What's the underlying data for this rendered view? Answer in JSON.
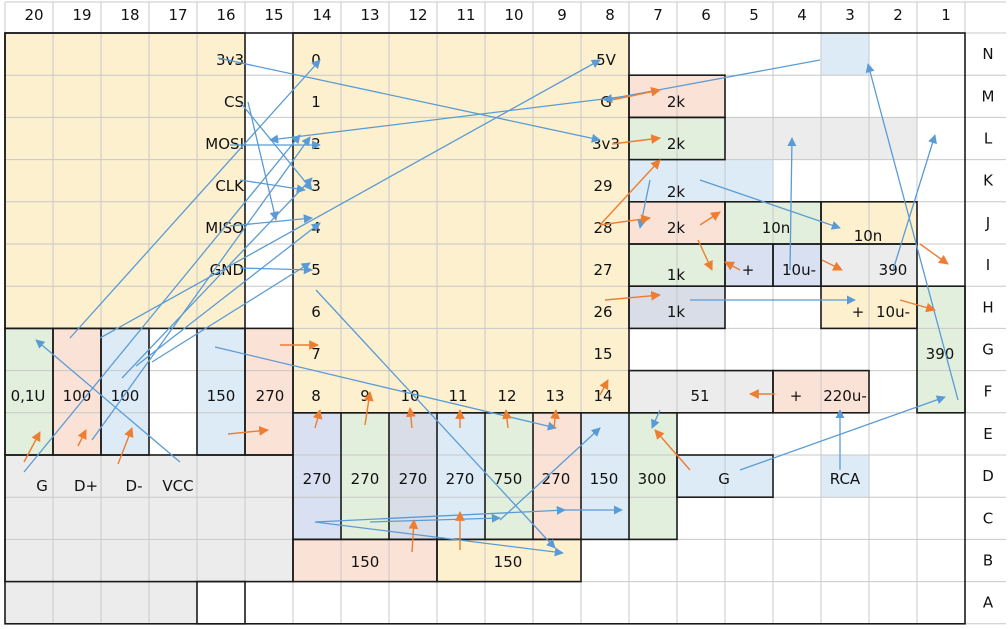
{
  "column_labels": [
    "20",
    "19",
    "18",
    "17",
    "16",
    "15",
    "14",
    "13",
    "12",
    "11",
    "10",
    "9",
    "8",
    "7",
    "6",
    "5",
    "4",
    "3",
    "2",
    "1"
  ],
  "row_labels": [
    "N",
    "M",
    "L",
    "K",
    "J",
    "I",
    "H",
    "G",
    "F",
    "E",
    "D",
    "C",
    "B",
    "A"
  ],
  "colors": {
    "yellow": "#fdf0cf",
    "red": "#fbe2d6",
    "green": "#e1efdc",
    "blue": "#ddebf7",
    "gray": "#ececec",
    "slate": "#d8dde8",
    "violet": "#d9e0f2",
    "blue_arrow": "#5b9bd5",
    "orange_arrow": "#ed7d31"
  },
  "labels": {
    "pin_3v3": "3v3",
    "pin_cs": "CS",
    "pin_mosi": "MOSI",
    "pin_clk": "CLK",
    "pin_miso": "MISO",
    "pin_gnd": "GND",
    "n0": "0",
    "n1": "1",
    "n2": "2",
    "n3": "3",
    "n4": "4",
    "n5": "5",
    "n6": "6",
    "n7": "7",
    "n8": "8",
    "n9": "9",
    "n10": "10",
    "n11": "11",
    "n12": "12",
    "n13": "13",
    "n14": "14",
    "p5v": "5V",
    "pG": "G",
    "p3v3": "3v3",
    "p29": "29",
    "p28": "28",
    "p27": "27",
    "p26": "26",
    "p15": "15",
    "p14": "14",
    "r2k_m": "2k",
    "r2k_l": "2k",
    "r2k_k": "2k",
    "r2k_j": "2k",
    "r1k_i": "1k",
    "r1k_h": "1k",
    "c10n_a": "10n",
    "c10n_b": "10n",
    "r390_i": "390",
    "r390_g": "390",
    "c10u_i": "10u-",
    "c10u_h": "10u-",
    "plus_i": "+",
    "plus_h": "+",
    "plus_f": "+",
    "c220u": "220u-",
    "r51": "51",
    "r270_f": "270",
    "r150_f": "150",
    "r100_a": "100",
    "r100_b": "100",
    "c01u": "0,1U",
    "usb_g": "G",
    "usb_dp": "D+",
    "usb_dm": "D-",
    "usb_vcc": "VCC",
    "r270_d1": "270",
    "r270_d2": "270",
    "r270_d3": "270",
    "r750": "750",
    "r270_d4": "270",
    "r150_d": "150",
    "r300": "300",
    "g_d": "G",
    "rca": "RCA",
    "r150_b1": "150",
    "r150_b2": "150"
  },
  "blue_connections": [
    [
      "pin_3v3",
      "l_3v3"
    ],
    [
      "pin_cs",
      "d_n3"
    ],
    [
      "pin_mosi",
      "d_n1"
    ],
    [
      "pin_clk",
      "d_n3"
    ],
    [
      "pin_miso",
      "d_n4"
    ],
    [
      "pin_gnd",
      "d_n5"
    ],
    [
      "m_G",
      "p_n3"
    ],
    [
      "k_2k",
      "j_10n"
    ],
    [
      "h_1k",
      "h_plus"
    ],
    [
      "l_3v3",
      "i_390"
    ],
    [
      "d_g",
      "f_right"
    ],
    [
      "i_10u",
      "l_4"
    ],
    [
      "h_10u",
      "l_2"
    ],
    [
      "g_390",
      "n_3"
    ],
    [
      "c_270",
      "b_150"
    ],
    [
      "c_270",
      "c_150"
    ],
    [
      "c_12",
      "f_8"
    ],
    [
      "e_g",
      "l_side"
    ]
  ],
  "orange_connections": [
    [
      "m_2k",
      "l_arrow"
    ],
    [
      "l_2k",
      "m_arrow"
    ],
    [
      "j_2k",
      "l_28"
    ],
    [
      "i_1k",
      "j_28"
    ],
    [
      "h_26",
      "h_1k"
    ],
    [
      "f_51",
      "f_plus"
    ],
    [
      "e_300",
      "d_arrow"
    ],
    [
      "j_10n",
      "i_arrow"
    ],
    [
      "i_plus",
      "i_10u"
    ],
    [
      "g_7",
      "g_arrow"
    ],
    [
      "e_8",
      "f_8"
    ],
    [
      "e_9",
      "f_9"
    ],
    [
      "e_10",
      "f_10"
    ],
    [
      "e_11",
      "f_11"
    ],
    [
      "e_12",
      "f_12"
    ],
    [
      "b_150",
      "c_15"
    ],
    [
      "e_01u",
      "e_arrow"
    ]
  ]
}
